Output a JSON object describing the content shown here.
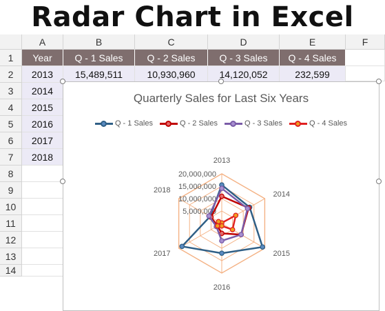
{
  "banner_title": "Radar Chart in Excel",
  "columns": [
    "A",
    "B",
    "C",
    "D",
    "E",
    "F"
  ],
  "rows": [
    "1",
    "2",
    "3",
    "4",
    "5",
    "6",
    "7",
    "8",
    "9",
    "10",
    "11",
    "12",
    "13",
    "14"
  ],
  "table": {
    "headers": [
      "Year",
      "Q - 1 Sales",
      "Q - 2 Sales",
      "Q - 3 Sales",
      "Q - 4 Sales"
    ],
    "row2": [
      "2013",
      "15,489,511",
      "10,930,960",
      "14,120,052",
      "232,599"
    ],
    "years": [
      "2014",
      "2015",
      "2016",
      "2017",
      "2018"
    ]
  },
  "colors": {
    "q1": "#2f5f86",
    "q2": "#c00000",
    "q3": "#7a5ca8",
    "q4": "#e02020",
    "grid": "#f4b183"
  },
  "chart_data": {
    "type": "radar",
    "title": "Quarterly Sales for Last Six Years",
    "categories": [
      "2013",
      "2014",
      "2015",
      "2016",
      "2017",
      "2018"
    ],
    "axis_ticks": [
      "20,000,000",
      "15,000,000",
      "10,000,000",
      "5,000,000"
    ],
    "ylim": [
      0,
      20000000
    ],
    "legend_position": "top",
    "series": [
      {
        "name": "Q - 1 Sales",
        "values": [
          15489511,
          13000000,
          19000000,
          12000000,
          18500000,
          5500000
        ]
      },
      {
        "name": "Q - 2 Sales",
        "values": [
          10930960,
          12500000,
          9000000,
          4000000,
          2000000,
          5000000
        ]
      },
      {
        "name": "Q - 3 Sales",
        "values": [
          14120052,
          12000000,
          9000000,
          7000000,
          2500000,
          6000000
        ]
      },
      {
        "name": "Q - 4 Sales",
        "values": [
          232599,
          6500000,
          5000000,
          1000000,
          2000000,
          1500000
        ]
      }
    ]
  }
}
